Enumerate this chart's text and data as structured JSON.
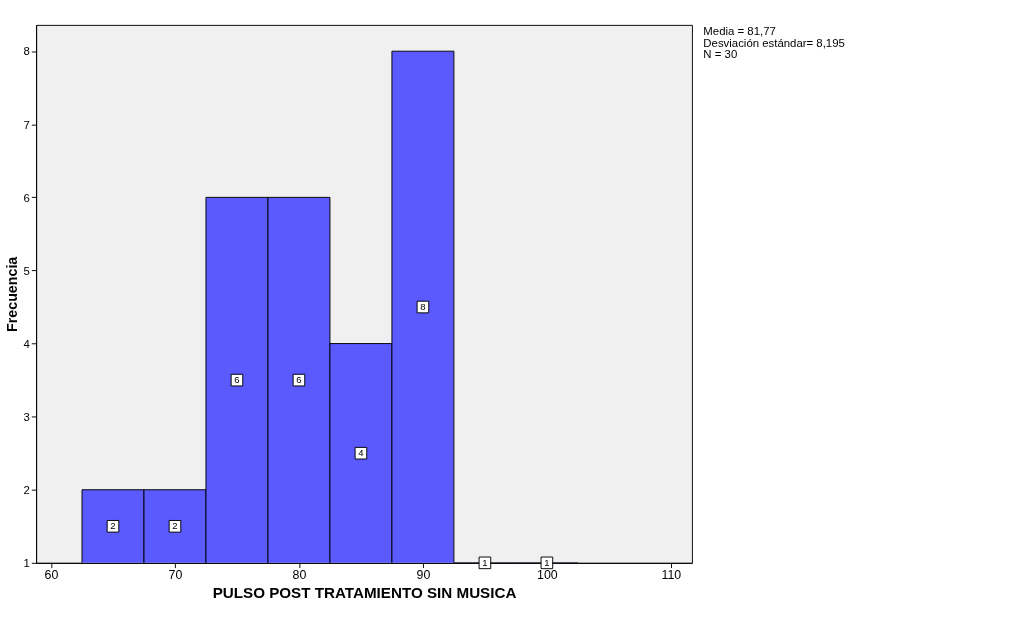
{
  "chart_data": {
    "type": "histogram",
    "xlabel": "PULSO POST TRATAMIENTO SIN MUSICA",
    "ylabel": "Frecuencia",
    "bins": [
      62.5,
      67.5,
      72.5,
      77.5,
      82.5,
      87.5,
      92.5,
      97.5,
      102.5
    ],
    "values": [
      2,
      2,
      6,
      6,
      4,
      8,
      1,
      1
    ],
    "color": "#5a5aff",
    "data_labels": true,
    "xlim": [
      58.8,
      111.7
    ],
    "xticks": [
      60,
      70,
      80,
      90,
      100,
      110
    ],
    "ylim": [
      1,
      8.36
    ],
    "yticks": [
      1,
      2,
      3,
      4,
      5,
      6,
      7,
      8
    ],
    "grid": false,
    "annotations": [
      "Media = 81,77",
      "Desviación estándar= 8,195",
      "N = 30"
    ]
  }
}
